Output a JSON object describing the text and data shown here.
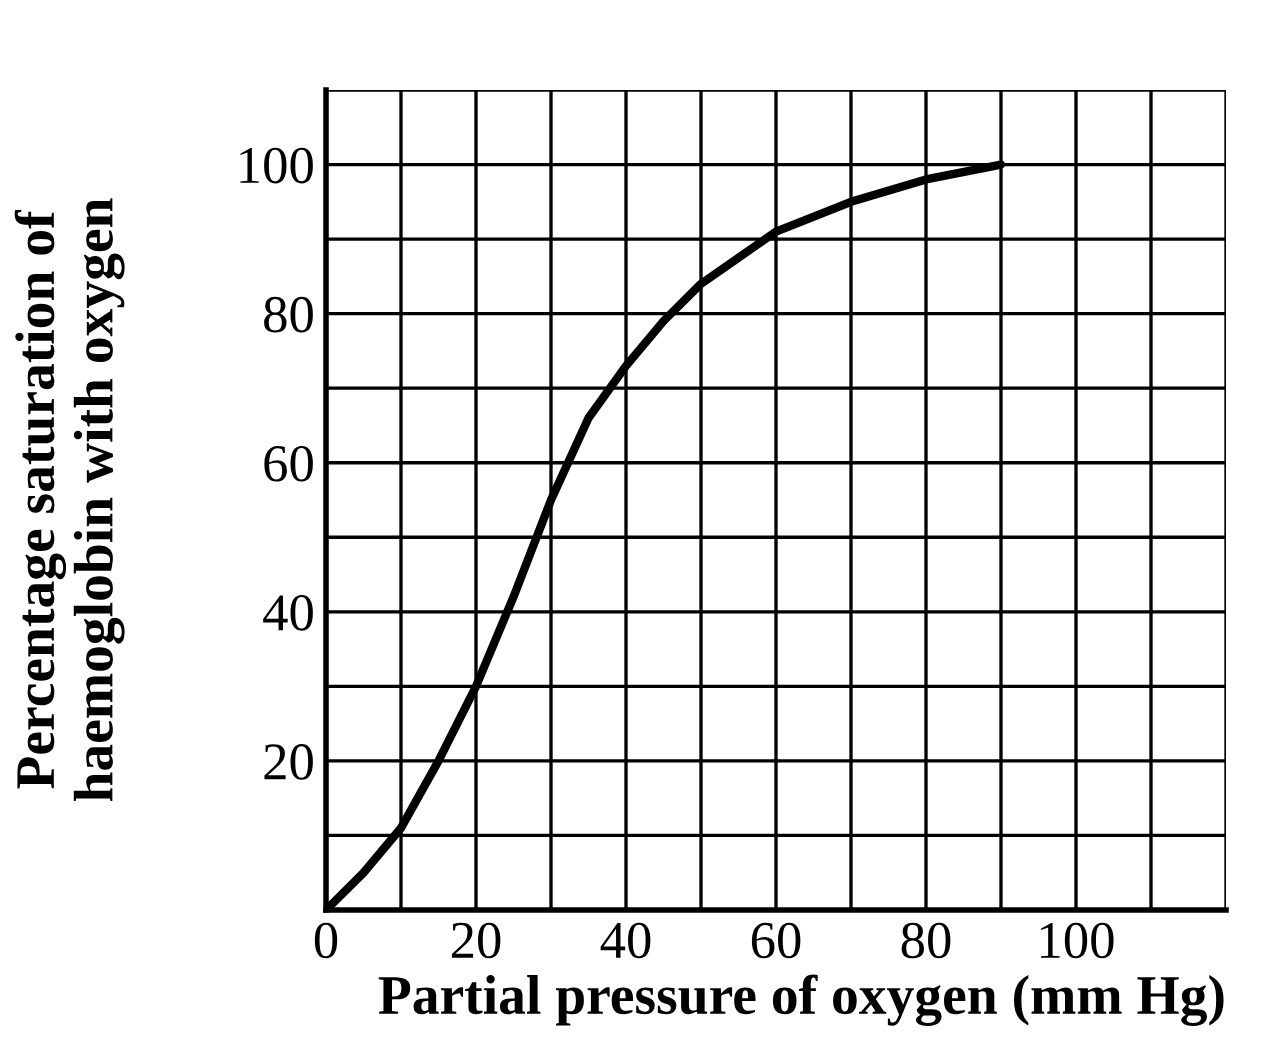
{
  "chart_data": {
    "type": "line",
    "xlabel": "Partial pressure of oxygen (mm Hg)",
    "ylabel": "Percentage saturation of\nhaemoglobin with oxygen",
    "x": [
      0,
      5,
      10,
      15,
      20,
      25,
      30,
      35,
      40,
      45,
      50,
      60,
      70,
      80,
      90
    ],
    "series": [
      {
        "color": "#000000",
        "values": [
          0,
          5,
          11,
          20,
          30,
          42,
          55,
          66,
          73,
          79,
          84,
          91,
          95,
          98,
          100
        ]
      }
    ],
    "xlim": [
      0,
      120
    ],
    "ylim": [
      0,
      110
    ],
    "xticks": [
      0,
      {
        "value": 10,
        "label": null
      },
      20,
      {
        "value": 30,
        "label": null
      },
      40,
      {
        "value": 50,
        "label": null
      },
      60,
      {
        "value": 70,
        "label": null
      },
      80,
      {
        "value": 90,
        "label": null
      },
      100,
      {
        "value": 110,
        "label": null
      },
      {
        "value": 120,
        "label": null
      }
    ],
    "yticks": [
      {
        "value": 0,
        "label": null
      },
      {
        "value": 10,
        "label": null
      },
      20,
      {
        "value": 30,
        "label": null
      },
      40,
      {
        "value": 50,
        "label": null
      },
      60,
      {
        "value": 70,
        "label": null
      },
      80,
      {
        "value": 90,
        "label": null
      },
      100,
      {
        "value": 110,
        "label": null
      }
    ],
    "grid": true,
    "legend": false,
    "marker": "none",
    "line_style": "solid"
  }
}
